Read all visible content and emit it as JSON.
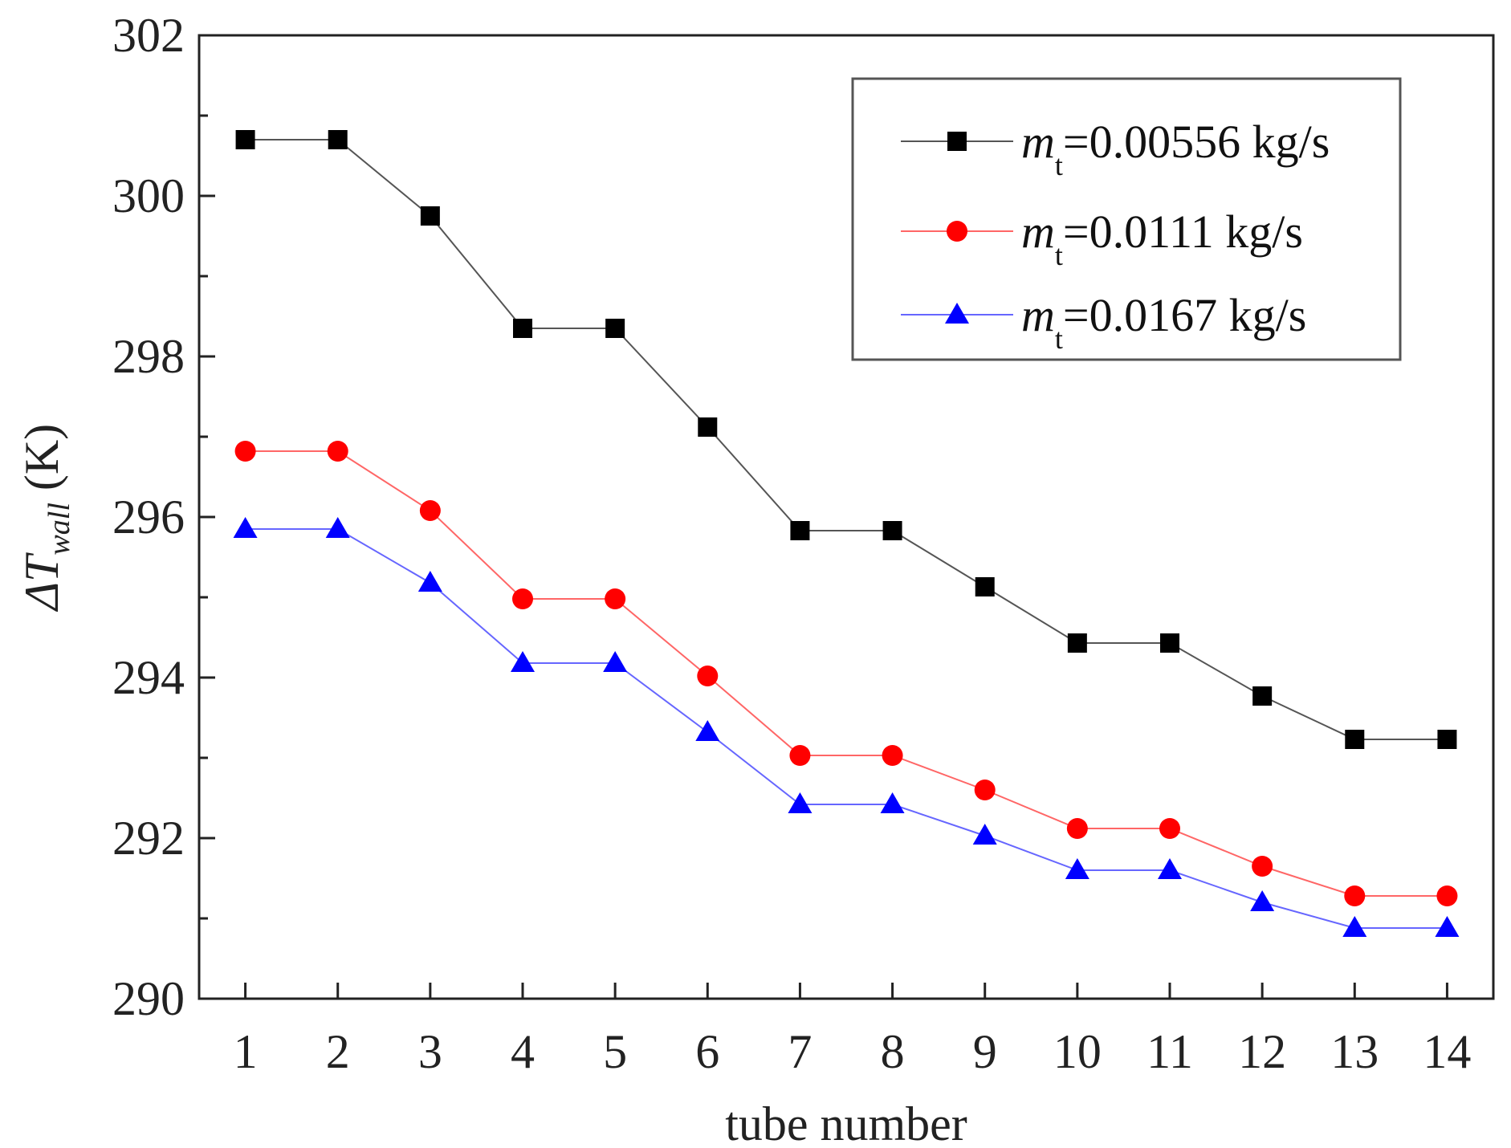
{
  "chart_data": {
    "type": "line",
    "title": "",
    "xlabel": "tube number",
    "ylabel": {
      "prefix": "ΔT",
      "subscript": "wall",
      "suffix": " (K)"
    },
    "x": [
      1,
      2,
      3,
      4,
      5,
      6,
      7,
      8,
      9,
      10,
      11,
      12,
      13,
      14
    ],
    "xlim": [
      0.5,
      14.5
    ],
    "ylim": [
      290,
      302
    ],
    "yticks": [
      290,
      292,
      294,
      296,
      298,
      300,
      302
    ],
    "grid": false,
    "legend_position": "top-right",
    "series": [
      {
        "name": "m_t=0.00556 kg/s",
        "label_main": "m",
        "label_sub": "t",
        "label_rest": "=0.00556 kg/s",
        "color": "#000000",
        "line_color": "#555555",
        "marker": "square",
        "values": [
          300.7,
          300.7,
          299.75,
          298.35,
          298.35,
          297.12,
          295.83,
          295.83,
          295.13,
          294.43,
          294.43,
          293.77,
          293.23,
          293.23
        ]
      },
      {
        "name": "m_t=0.0111 kg/s",
        "label_main": "m",
        "label_sub": "t",
        "label_rest": "=0.0111 kg/s",
        "color": "#ff0000",
        "line_color": "#ff6666",
        "marker": "circle",
        "values": [
          296.82,
          296.82,
          296.08,
          294.98,
          294.98,
          294.02,
          293.03,
          293.03,
          292.6,
          292.12,
          292.12,
          291.65,
          291.28,
          291.28
        ]
      },
      {
        "name": "m_t=0.0167 kg/s",
        "label_main": "m",
        "label_sub": "t",
        "label_rest": "=0.0167 kg/s",
        "color": "#0000ff",
        "line_color": "#6666ff",
        "marker": "triangle",
        "values": [
          295.85,
          295.85,
          295.18,
          294.18,
          294.18,
          293.32,
          292.42,
          292.42,
          292.03,
          291.6,
          291.6,
          291.2,
          290.88,
          290.88
        ]
      }
    ]
  }
}
